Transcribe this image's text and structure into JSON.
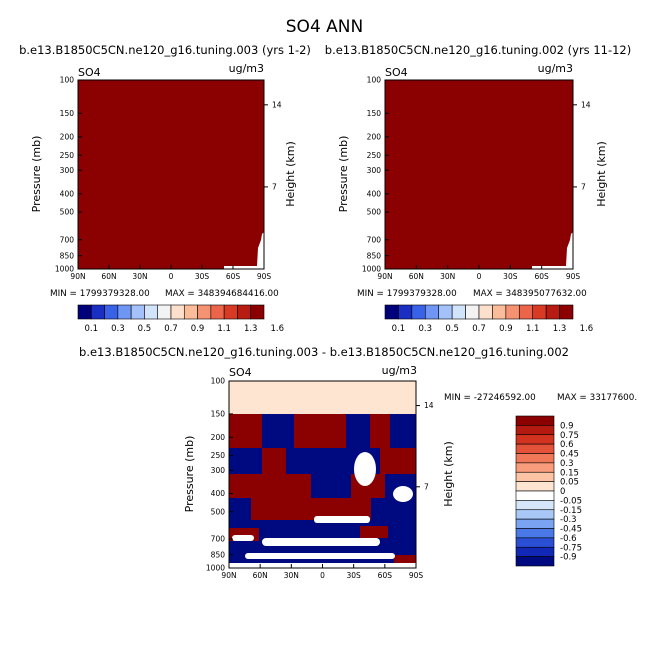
{
  "page_title": "SO4 ANN",
  "chart_data": [
    {
      "type": "heatmap",
      "title": "b.e13.B1850C5CN.ne120_g16.tuning.003 (yrs 1-2)",
      "variable": "SO4",
      "units": "ug/m3",
      "xlabel": "",
      "ylabel": "Pressure (mb)",
      "y2label": "Height (km)",
      "x_ticks": [
        "90N",
        "60N",
        "30N",
        "0",
        "30S",
        "60S",
        "90S"
      ],
      "y_ticks": [
        "100",
        "150",
        "200",
        "250",
        "300",
        "400",
        "500",
        "700",
        "850",
        "1000"
      ],
      "y2_ticks": [
        "14",
        "7"
      ],
      "min_label": "MIN = 1799379328.00",
      "max_label": "MAX = 348394684416.00",
      "fill_color": "#8b0000",
      "colorbar_levels": [
        "0.1",
        "0.3",
        "0.5",
        "0.7",
        "0.9",
        "1.1",
        "1.3",
        "1.6"
      ],
      "colorbar_colors": [
        "#00007a",
        "#1a2ec4",
        "#3a62e8",
        "#6f95f5",
        "#a4c1fa",
        "#d2e3fc",
        "#f3f3f3",
        "#fde0cc",
        "#fcbb99",
        "#f59272",
        "#ec654a",
        "#d93a24",
        "#b81b12",
        "#8b0000"
      ]
    },
    {
      "type": "heatmap",
      "title": "b.e13.B1850C5CN.ne120_g16.tuning.002 (yrs 11-12)",
      "variable": "SO4",
      "units": "ug/m3",
      "xlabel": "",
      "ylabel": "Pressure (mb)",
      "y2label": "Height (km)",
      "x_ticks": [
        "90N",
        "60N",
        "30N",
        "0",
        "30S",
        "60S",
        "90S"
      ],
      "y_ticks": [
        "100",
        "150",
        "200",
        "250",
        "300",
        "400",
        "500",
        "700",
        "850",
        "1000"
      ],
      "y2_ticks": [
        "14",
        "7"
      ],
      "min_label": "MIN = 1799379328.00",
      "max_label": "MAX = 348395077632.00",
      "fill_color": "#8b0000",
      "colorbar_levels": [
        "0.1",
        "0.3",
        "0.5",
        "0.7",
        "0.9",
        "1.1",
        "1.3",
        "1.6"
      ],
      "colorbar_colors": [
        "#00007a",
        "#1a2ec4",
        "#3a62e8",
        "#6f95f5",
        "#a4c1fa",
        "#d2e3fc",
        "#f3f3f3",
        "#fde0cc",
        "#fcbb99",
        "#f59272",
        "#ec654a",
        "#d93a24",
        "#b81b12",
        "#8b0000"
      ]
    },
    {
      "type": "heatmap",
      "title": "b.e13.B1850C5CN.ne120_g16.tuning.003 - b.e13.B1850C5CN.ne120_g16.tuning.002",
      "variable": "SO4",
      "units": "ug/m3",
      "xlabel": "",
      "ylabel": "Pressure (mb)",
      "y2label": "Height (km)",
      "x_ticks": [
        "90N",
        "60N",
        "30N",
        "0",
        "30S",
        "60S",
        "90S"
      ],
      "y_ticks": [
        "100",
        "150",
        "200",
        "250",
        "300",
        "400",
        "500",
        "700",
        "850",
        "1000"
      ],
      "y2_ticks": [
        "14",
        "7"
      ],
      "min_label": "MIN = -27246592.00",
      "max_label": "MAX = 33177600.",
      "colorbar_levels": [
        "0.9",
        "0.75",
        "0.6",
        "0.45",
        "0.3",
        "0.15",
        "0.05",
        "0",
        "-0.05",
        "-0.15",
        "-0.3",
        "-0.45",
        "-0.6",
        "-0.75",
        "-0.9"
      ],
      "colorbar_colors": [
        "#8b0000",
        "#b51a10",
        "#d23220",
        "#e5523a",
        "#f07858",
        "#f89c7c",
        "#fcc3a4",
        "#fde5d2",
        "#ffffff",
        "#d5e6fb",
        "#a9c8f7",
        "#7aa3f1",
        "#4a78e6",
        "#2a4fd5",
        "#1028b5",
        "#000a80"
      ]
    }
  ]
}
